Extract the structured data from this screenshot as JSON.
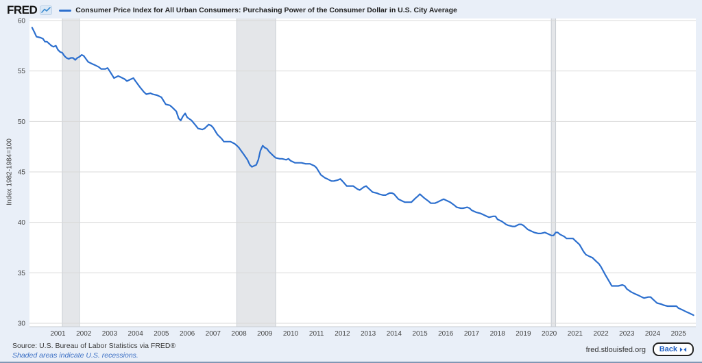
{
  "branding": {
    "logo": "FRED"
  },
  "legend": {
    "label": "Consumer Price Index for All Urban Consumers: Purchasing Power of the Consumer Dollar in U.S. City Average"
  },
  "chart_data": {
    "type": "line",
    "title": "Consumer Price Index for All Urban Consumers: Purchasing Power of the Consumer Dollar in U.S. City Average",
    "ylabel": "Index 1982-1984=100",
    "xlabel": "",
    "ylim": [
      29.7,
      60
    ],
    "xlim": [
      1999.9,
      2025.67
    ],
    "yticks": [
      30,
      35,
      40,
      45,
      50,
      55,
      60
    ],
    "xticks": [
      2001,
      2002,
      2003,
      2004,
      2005,
      2006,
      2007,
      2008,
      2009,
      2010,
      2011,
      2012,
      2013,
      2014,
      2015,
      2016,
      2017,
      2018,
      2019,
      2020,
      2021,
      2022,
      2023,
      2024,
      2025
    ],
    "grid": "horizontal",
    "legend_position": "top-left",
    "line_color": "#2c6fce",
    "recession_band_color": "#e4e6e9",
    "recession_band_edge_color": "#c6cbd1",
    "recession_bands": [
      {
        "start": 2001.17,
        "end": 2001.83
      },
      {
        "start": 2007.92,
        "end": 2009.42
      },
      {
        "start": 2020.08,
        "end": 2020.25
      }
    ],
    "series": [
      {
        "name": "Consumer Price Index for All Urban Consumers: Purchasing Power of the Consumer Dollar in U.S. City Average",
        "points": [
          [
            2000.0,
            59.3
          ],
          [
            2000.08,
            58.9
          ],
          [
            2000.17,
            58.4
          ],
          [
            2000.33,
            58.3
          ],
          [
            2000.42,
            58.2
          ],
          [
            2000.5,
            57.9
          ],
          [
            2000.58,
            57.9
          ],
          [
            2000.75,
            57.5
          ],
          [
            2000.83,
            57.4
          ],
          [
            2000.92,
            57.5
          ],
          [
            2001.0,
            57.1
          ],
          [
            2001.08,
            56.9
          ],
          [
            2001.17,
            56.8
          ],
          [
            2001.25,
            56.5
          ],
          [
            2001.33,
            56.3
          ],
          [
            2001.42,
            56.2
          ],
          [
            2001.5,
            56.3
          ],
          [
            2001.58,
            56.3
          ],
          [
            2001.67,
            56.1
          ],
          [
            2001.75,
            56.3
          ],
          [
            2001.83,
            56.4
          ],
          [
            2001.92,
            56.6
          ],
          [
            2002.0,
            56.5
          ],
          [
            2002.17,
            55.9
          ],
          [
            2002.33,
            55.7
          ],
          [
            2002.42,
            55.6
          ],
          [
            2002.58,
            55.4
          ],
          [
            2002.67,
            55.2
          ],
          [
            2002.83,
            55.2
          ],
          [
            2002.92,
            55.3
          ],
          [
            2003.0,
            55.0
          ],
          [
            2003.17,
            54.3
          ],
          [
            2003.33,
            54.5
          ],
          [
            2003.42,
            54.4
          ],
          [
            2003.58,
            54.2
          ],
          [
            2003.67,
            54.0
          ],
          [
            2003.83,
            54.2
          ],
          [
            2003.92,
            54.3
          ],
          [
            2004.0,
            54.0
          ],
          [
            2004.17,
            53.4
          ],
          [
            2004.33,
            52.9
          ],
          [
            2004.42,
            52.7
          ],
          [
            2004.58,
            52.8
          ],
          [
            2004.67,
            52.7
          ],
          [
            2004.83,
            52.6
          ],
          [
            2004.92,
            52.5
          ],
          [
            2005.0,
            52.4
          ],
          [
            2005.17,
            51.7
          ],
          [
            2005.33,
            51.6
          ],
          [
            2005.42,
            51.4
          ],
          [
            2005.58,
            51.0
          ],
          [
            2005.67,
            50.3
          ],
          [
            2005.75,
            50.1
          ],
          [
            2005.83,
            50.5
          ],
          [
            2005.92,
            50.8
          ],
          [
            2006.0,
            50.4
          ],
          [
            2006.17,
            50.1
          ],
          [
            2006.33,
            49.6
          ],
          [
            2006.42,
            49.3
          ],
          [
            2006.58,
            49.2
          ],
          [
            2006.67,
            49.3
          ],
          [
            2006.83,
            49.7
          ],
          [
            2006.92,
            49.6
          ],
          [
            2007.0,
            49.4
          ],
          [
            2007.17,
            48.7
          ],
          [
            2007.33,
            48.3
          ],
          [
            2007.42,
            48.0
          ],
          [
            2007.58,
            48.0
          ],
          [
            2007.67,
            48.0
          ],
          [
            2007.83,
            47.8
          ],
          [
            2007.92,
            47.6
          ],
          [
            2008.0,
            47.4
          ],
          [
            2008.17,
            46.8
          ],
          [
            2008.33,
            46.2
          ],
          [
            2008.42,
            45.7
          ],
          [
            2008.5,
            45.5
          ],
          [
            2008.58,
            45.6
          ],
          [
            2008.67,
            45.7
          ],
          [
            2008.75,
            46.2
          ],
          [
            2008.83,
            47.1
          ],
          [
            2008.92,
            47.6
          ],
          [
            2009.0,
            47.4
          ],
          [
            2009.08,
            47.3
          ],
          [
            2009.17,
            47.0
          ],
          [
            2009.33,
            46.6
          ],
          [
            2009.42,
            46.4
          ],
          [
            2009.58,
            46.3
          ],
          [
            2009.67,
            46.3
          ],
          [
            2009.83,
            46.2
          ],
          [
            2009.92,
            46.3
          ],
          [
            2010.0,
            46.1
          ],
          [
            2010.17,
            45.9
          ],
          [
            2010.42,
            45.9
          ],
          [
            2010.58,
            45.8
          ],
          [
            2010.75,
            45.8
          ],
          [
            2010.92,
            45.6
          ],
          [
            2011.0,
            45.4
          ],
          [
            2011.17,
            44.7
          ],
          [
            2011.33,
            44.4
          ],
          [
            2011.42,
            44.3
          ],
          [
            2011.58,
            44.1
          ],
          [
            2011.67,
            44.1
          ],
          [
            2011.83,
            44.2
          ],
          [
            2011.92,
            44.3
          ],
          [
            2012.0,
            44.1
          ],
          [
            2012.17,
            43.6
          ],
          [
            2012.33,
            43.6
          ],
          [
            2012.42,
            43.6
          ],
          [
            2012.58,
            43.3
          ],
          [
            2012.67,
            43.2
          ],
          [
            2012.83,
            43.5
          ],
          [
            2012.92,
            43.6
          ],
          [
            2013.0,
            43.4
          ],
          [
            2013.17,
            43.0
          ],
          [
            2013.33,
            42.9
          ],
          [
            2013.42,
            42.8
          ],
          [
            2013.58,
            42.7
          ],
          [
            2013.67,
            42.7
          ],
          [
            2013.83,
            42.9
          ],
          [
            2013.92,
            42.9
          ],
          [
            2014.0,
            42.8
          ],
          [
            2014.17,
            42.3
          ],
          [
            2014.33,
            42.1
          ],
          [
            2014.42,
            42.0
          ],
          [
            2014.58,
            42.0
          ],
          [
            2014.67,
            42.0
          ],
          [
            2014.83,
            42.4
          ],
          [
            2014.92,
            42.6
          ],
          [
            2015.0,
            42.8
          ],
          [
            2015.17,
            42.4
          ],
          [
            2015.33,
            42.1
          ],
          [
            2015.42,
            41.9
          ],
          [
            2015.58,
            41.9
          ],
          [
            2015.67,
            42.0
          ],
          [
            2015.83,
            42.2
          ],
          [
            2015.92,
            42.3
          ],
          [
            2016.0,
            42.2
          ],
          [
            2016.17,
            42.0
          ],
          [
            2016.33,
            41.7
          ],
          [
            2016.42,
            41.5
          ],
          [
            2016.58,
            41.4
          ],
          [
            2016.67,
            41.4
          ],
          [
            2016.83,
            41.5
          ],
          [
            2016.92,
            41.4
          ],
          [
            2017.0,
            41.2
          ],
          [
            2017.17,
            41.0
          ],
          [
            2017.33,
            40.9
          ],
          [
            2017.42,
            40.8
          ],
          [
            2017.58,
            40.6
          ],
          [
            2017.67,
            40.5
          ],
          [
            2017.83,
            40.6
          ],
          [
            2017.92,
            40.6
          ],
          [
            2018.0,
            40.3
          ],
          [
            2018.17,
            40.1
          ],
          [
            2018.33,
            39.8
          ],
          [
            2018.42,
            39.7
          ],
          [
            2018.58,
            39.6
          ],
          [
            2018.67,
            39.6
          ],
          [
            2018.83,
            39.8
          ],
          [
            2018.92,
            39.8
          ],
          [
            2019.0,
            39.7
          ],
          [
            2019.17,
            39.3
          ],
          [
            2019.33,
            39.1
          ],
          [
            2019.42,
            39.0
          ],
          [
            2019.58,
            38.9
          ],
          [
            2019.67,
            38.9
          ],
          [
            2019.83,
            39.0
          ],
          [
            2019.92,
            38.9
          ],
          [
            2020.0,
            38.8
          ],
          [
            2020.08,
            38.7
          ],
          [
            2020.17,
            38.7
          ],
          [
            2020.25,
            39.0
          ],
          [
            2020.33,
            39.0
          ],
          [
            2020.42,
            38.8
          ],
          [
            2020.58,
            38.6
          ],
          [
            2020.67,
            38.4
          ],
          [
            2020.83,
            38.4
          ],
          [
            2020.92,
            38.4
          ],
          [
            2021.0,
            38.2
          ],
          [
            2021.17,
            37.8
          ],
          [
            2021.33,
            37.1
          ],
          [
            2021.42,
            36.8
          ],
          [
            2021.58,
            36.6
          ],
          [
            2021.67,
            36.5
          ],
          [
            2021.83,
            36.1
          ],
          [
            2021.92,
            35.9
          ],
          [
            2022.0,
            35.6
          ],
          [
            2022.17,
            34.8
          ],
          [
            2022.33,
            34.1
          ],
          [
            2022.42,
            33.7
          ],
          [
            2022.58,
            33.7
          ],
          [
            2022.67,
            33.7
          ],
          [
            2022.83,
            33.8
          ],
          [
            2022.92,
            33.7
          ],
          [
            2023.0,
            33.4
          ],
          [
            2023.17,
            33.1
          ],
          [
            2023.33,
            32.9
          ],
          [
            2023.42,
            32.8
          ],
          [
            2023.58,
            32.6
          ],
          [
            2023.67,
            32.5
          ],
          [
            2023.83,
            32.6
          ],
          [
            2023.92,
            32.6
          ],
          [
            2024.0,
            32.4
          ],
          [
            2024.17,
            32.0
          ],
          [
            2024.33,
            31.9
          ],
          [
            2024.42,
            31.8
          ],
          [
            2024.58,
            31.7
          ],
          [
            2024.67,
            31.7
          ],
          [
            2024.83,
            31.7
          ],
          [
            2024.92,
            31.7
          ],
          [
            2025.0,
            31.5
          ],
          [
            2025.17,
            31.3
          ],
          [
            2025.33,
            31.1
          ],
          [
            2025.42,
            31.0
          ],
          [
            2025.5,
            30.9
          ],
          [
            2025.58,
            30.8
          ]
        ]
      }
    ]
  },
  "footer": {
    "source": "Source: U.S. Bureau of Labor Statistics via FRED®",
    "note": "Shaded areas indicate U.S. recessions.",
    "site": "fred.stlouisfed.org",
    "back_label": "Back"
  },
  "colors": {
    "background": "#e9eff8",
    "plot_background": "#ffffff",
    "gridline": "#d8d8d8",
    "axis_line": "#c7ccd2",
    "tick_text": "#444444",
    "link_blue": "#3b6fc4"
  }
}
